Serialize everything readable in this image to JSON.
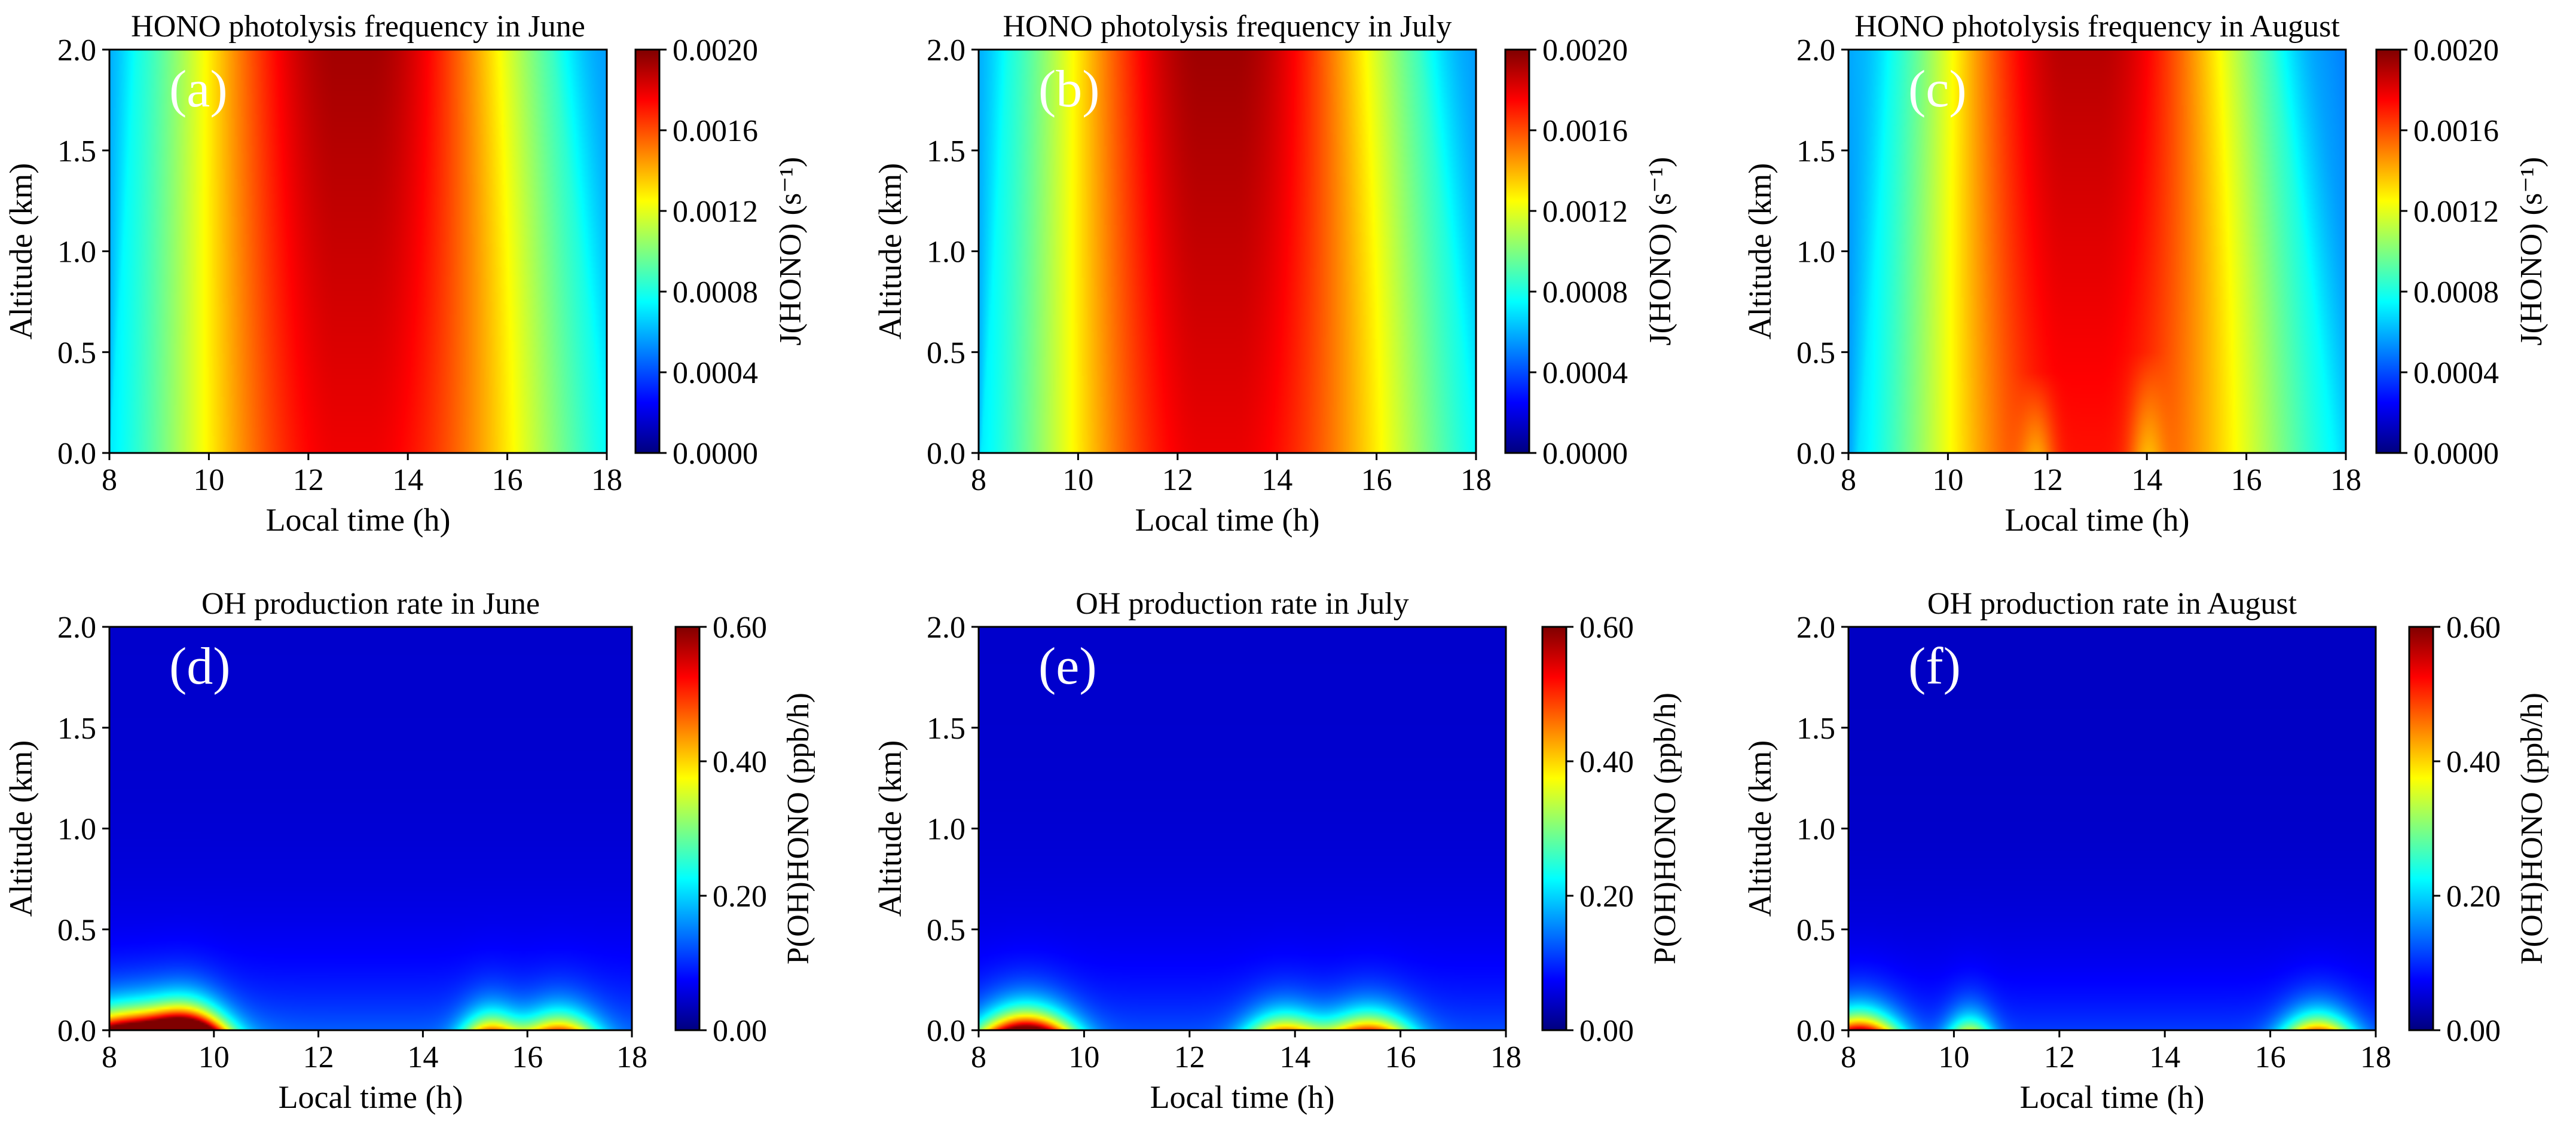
{
  "figure": {
    "colormap": [
      "#00007f",
      "#0000ff",
      "#007fff",
      "#00ffff",
      "#7fff7f",
      "#ffff00",
      "#ff7f00",
      "#ff0000",
      "#7f0000"
    ]
  },
  "chart_data": [
    {
      "type": "heatmap",
      "id": "a",
      "panel_label": "(a)",
      "title": "HONO photolysis frequency in June",
      "xlabel": "Local time (h)",
      "ylabel": "Altitude (km)",
      "xlim": [
        8,
        18
      ],
      "ylim": [
        0,
        2.0
      ],
      "xticks": [
        8,
        10,
        12,
        14,
        16,
        18
      ],
      "yticks": [
        "0.0",
        "0.5",
        "1.0",
        "1.5",
        "2.0"
      ],
      "colorbar": {
        "label": "J(HONO) (s⁻¹)",
        "ticks": [
          "0.0000",
          "0.0004",
          "0.0008",
          "0.0012",
          "0.0016",
          "0.0020"
        ],
        "range": [
          0,
          0.002
        ]
      },
      "field": {
        "kind": "J",
        "morning_edge": [
          8.0,
          8.55
        ],
        "evening_edge": [
          18.0,
          16.9
        ],
        "peak_time": 12.8,
        "peak_value_top": 0.00193,
        "peak_value_bottom": 0.00178,
        "dips": []
      }
    },
    {
      "type": "heatmap",
      "id": "b",
      "panel_label": "(b)",
      "title": "HONO photolysis frequency in July",
      "xlabel": "Local time (h)",
      "ylabel": "Altitude (km)",
      "xlim": [
        8,
        18
      ],
      "ylim": [
        0,
        2.0
      ],
      "xticks": [
        8,
        10,
        12,
        14,
        16,
        18
      ],
      "yticks": [
        "0.0",
        "0.5",
        "1.0",
        "1.5",
        "2.0"
      ],
      "colorbar": {
        "label": "J(HONO) (s⁻¹)",
        "ticks": [
          "0.0000",
          "0.0004",
          "0.0008",
          "0.0012",
          "0.0016",
          "0.0020"
        ],
        "range": [
          0,
          0.002
        ]
      },
      "field": {
        "kind": "J",
        "morning_edge": [
          8.05,
          8.6
        ],
        "evening_edge": [
          18.0,
          16.85
        ],
        "peak_time": 12.7,
        "peak_value_top": 0.00194,
        "peak_value_bottom": 0.00179,
        "dips": []
      }
    },
    {
      "type": "heatmap",
      "id": "c",
      "panel_label": "(c)",
      "title": "HONO photolysis frequency in August",
      "xlabel": "Local time (h)",
      "ylabel": "Altitude (km)",
      "xlim": [
        8,
        18
      ],
      "ylim": [
        0,
        2.0
      ],
      "xticks": [
        8,
        10,
        12,
        14,
        16,
        18
      ],
      "yticks": [
        "0.0",
        "0.5",
        "1.0",
        "1.5",
        "2.0"
      ],
      "colorbar": {
        "label": "J(HONO) (s⁻¹)",
        "ticks": [
          "0.0000",
          "0.0004",
          "0.0008",
          "0.0012",
          "0.0016",
          "0.0020"
        ],
        "range": [
          0,
          0.002
        ]
      },
      "field": {
        "kind": "J",
        "morning_edge": [
          8.2,
          8.9
        ],
        "evening_edge": [
          17.8,
          16.5
        ],
        "peak_time": 12.6,
        "peak_value_top": 0.00189,
        "peak_value_bottom": 0.00172,
        "dips": [
          [
            11.8,
            0.4
          ],
          [
            14.0,
            0.5
          ]
        ]
      }
    },
    {
      "type": "heatmap",
      "id": "d",
      "panel_label": "(d)",
      "title": "OH production rate in June",
      "xlabel": "Local time (h)",
      "ylabel": "Altitude (km)",
      "xlim": [
        8,
        18
      ],
      "ylim": [
        0,
        2.0
      ],
      "xticks": [
        8,
        10,
        12,
        14,
        16,
        18
      ],
      "yticks": [
        "0.0",
        "0.5",
        "1.0",
        "1.5",
        "2.0"
      ],
      "colorbar": {
        "label": "P(OH)HONO (ppb/h)",
        "ticks": [
          "0.00",
          "0.20",
          "0.40",
          "0.60"
        ],
        "range": [
          0,
          0.6
        ]
      },
      "field": {
        "kind": "P",
        "background_top": 0.045,
        "background_bottom": 0.13,
        "blobs": [
          [
            8.5,
            0.6,
            1.1
          ],
          [
            9.5,
            0.3,
            0.9
          ],
          [
            15.3,
            0.25,
            0.55
          ],
          [
            16.6,
            0.32,
            0.6
          ]
        ]
      }
    },
    {
      "type": "heatmap",
      "id": "e",
      "panel_label": "(e)",
      "title": "OH production rate in July",
      "xlabel": "Local time (h)",
      "ylabel": "Altitude (km)",
      "xlim": [
        8,
        18
      ],
      "ylim": [
        0,
        2.0
      ],
      "xticks": [
        8,
        10,
        12,
        14,
        16,
        18
      ],
      "yticks": [
        "0.0",
        "0.5",
        "1.0",
        "1.5",
        "2.0"
      ],
      "colorbar": {
        "label": "P(OH)HONO (ppb/h)",
        "ticks": [
          "0.00",
          "0.20",
          "0.40",
          "0.60"
        ],
        "range": [
          0,
          0.6
        ]
      },
      "field": {
        "kind": "P",
        "background_top": 0.045,
        "background_bottom": 0.12,
        "blobs": [
          [
            8.9,
            0.38,
            1.0
          ],
          [
            13.8,
            0.33,
            0.55
          ],
          [
            15.4,
            0.36,
            0.65
          ]
        ]
      }
    },
    {
      "type": "heatmap",
      "id": "f",
      "panel_label": "(f)",
      "title": "OH production rate in August",
      "xlabel": "Local time (h)",
      "ylabel": "Altitude (km)",
      "xlim": [
        8,
        18
      ],
      "ylim": [
        0,
        2.0
      ],
      "xticks": [
        8,
        10,
        12,
        14,
        16,
        18
      ],
      "yticks": [
        "0.0",
        "0.5",
        "1.0",
        "1.5",
        "2.0"
      ],
      "colorbar": {
        "label": "P(OH)HONO (ppb/h)",
        "ticks": [
          "0.00",
          "0.20",
          "0.40",
          "0.60"
        ],
        "range": [
          0,
          0.6
        ]
      },
      "field": {
        "kind": "P",
        "background_top": 0.04,
        "background_bottom": 0.11,
        "blobs": [
          [
            8.2,
            0.33,
            0.8
          ],
          [
            10.3,
            0.2,
            0.4
          ],
          [
            16.9,
            0.3,
            0.6
          ]
        ]
      }
    }
  ]
}
